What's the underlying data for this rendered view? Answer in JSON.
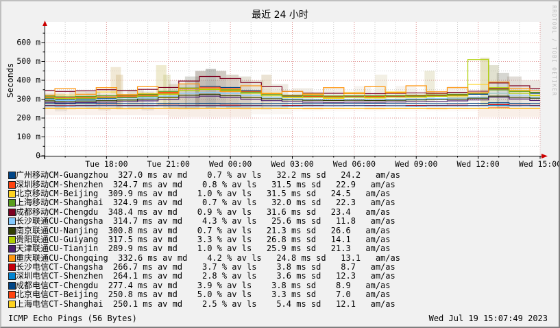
{
  "title": "最近 24 小时",
  "watermark": "RRDTOOL / TOBI OETIKER",
  "footer": {
    "left": "ICMP Echo Pings (56 Bytes)",
    "right": "Wed Jul 19 15:07:49 2023"
  },
  "colors": {
    "background": "#f1f1f1",
    "canvas": "#ffffff",
    "grid_minor": "#cfcfcf",
    "grid_major": "#e09494",
    "axis": "#000000",
    "arrow": "#cc0000",
    "watermark_gray": "#b9b9b9"
  },
  "chart_data": {
    "type": "line",
    "title": "最近 24 小时",
    "ylabel": "Seconds",
    "ylim": [
      0,
      660
    ],
    "y_unit": "m",
    "y_tick_labels": [
      "0",
      "100 m",
      "200 m",
      "300 m",
      "400 m",
      "500 m",
      "600 m"
    ],
    "y_minor_step": 50,
    "y_major_step": 100,
    "x_hours": 24,
    "x_minor_step_hours": 1,
    "x_tick_labels": [
      {
        "hour": 3,
        "label": "Tue 18:00"
      },
      {
        "hour": 6,
        "label": "Tue 21:00"
      },
      {
        "hour": 9,
        "label": "Wed 00:00"
      },
      {
        "hour": 12,
        "label": "Wed 03:00"
      },
      {
        "hour": 15,
        "label": "Wed 06:00"
      },
      {
        "hour": 18,
        "label": "Wed 09:00"
      },
      {
        "hour": 21,
        "label": "Wed 12:00"
      },
      {
        "hour": 24,
        "label": "Wed 15:00"
      }
    ],
    "series": [
      {
        "name": "CM-Guangzhou",
        "color": "#004586",
        "values": [
          302,
          298,
          301,
          305,
          308,
          314,
          330,
          358,
          368,
          362,
          345,
          328,
          316,
          312,
          310,
          312,
          311,
          313,
          315,
          318,
          321,
          326,
          358,
          344,
          331
        ]
      },
      {
        "name": "CM-Shenzhen",
        "color": "#ff420e",
        "values": [
          310,
          307,
          309,
          312,
          316,
          321,
          336,
          354,
          363,
          356,
          341,
          326,
          318,
          315,
          314,
          316,
          315,
          316,
          318,
          320,
          323,
          331,
          354,
          346,
          336
        ]
      },
      {
        "name": "CM-Beijing",
        "color": "#ffd320",
        "values": [
          294,
          322,
          296,
          338,
          298,
          330,
          308,
          356,
          336,
          352,
          310,
          332,
          308,
          328,
          304,
          334,
          306,
          338,
          310,
          330,
          312,
          378,
          330,
          346,
          318
        ]
      },
      {
        "name": "CM-Shanghai",
        "color": "#579d1c",
        "values": [
          316,
          313,
          315,
          318,
          321,
          326,
          341,
          359,
          354,
          349,
          337,
          326,
          321,
          318,
          317,
          318,
          318,
          319,
          321,
          323,
          326,
          331,
          349,
          341,
          336
        ]
      },
      {
        "name": "CM-Chengdu",
        "color": "#7e0021",
        "values": [
          346,
          341,
          344,
          350,
          346,
          352,
          362,
          396,
          420,
          409,
          388,
          366,
          341,
          332,
          331,
          330,
          329,
          331,
          333,
          331,
          336,
          342,
          386,
          371,
          356
        ]
      },
      {
        "name": "CU-Changsha",
        "color": "#83caff",
        "values": [
          296,
          293,
          295,
          298,
          301,
          306,
          316,
          331,
          336,
          330,
          319,
          309,
          301,
          298,
          297,
          298,
          298,
          299,
          301,
          303,
          306,
          311,
          331,
          321,
          311
        ]
      },
      {
        "name": "CU-Nanjing",
        "color": "#314004",
        "values": [
          291,
          288,
          290,
          292,
          295,
          300,
          310,
          321,
          326,
          318,
          309,
          302,
          296,
          294,
          293,
          294,
          293,
          294,
          296,
          298,
          300,
          305,
          316,
          310,
          305
        ]
      },
      {
        "name": "CU-Guiyang",
        "color": "#aecf00",
        "values": [
          306,
          303,
          305,
          308,
          311,
          316,
          326,
          346,
          351,
          344,
          331,
          318,
          312,
          310,
          309,
          310,
          310,
          311,
          313,
          315,
          318,
          510,
          361,
          331,
          321
        ]
      },
      {
        "name": "CU-Tianjin",
        "color": "#4b1f6f",
        "values": [
          283,
          280,
          282,
          284,
          287,
          291,
          299,
          311,
          316,
          309,
          300,
          292,
          287,
          284,
          283,
          284,
          284,
          285,
          287,
          288,
          291,
          296,
          311,
          301,
          293
        ]
      },
      {
        "name": "CU-Chongqing",
        "color": "#ff950e",
        "values": [
          321,
          356,
          326,
          361,
          324,
          366,
          331,
          381,
          356,
          341,
          371,
          329,
          341,
          324,
          361,
          329,
          366,
          334,
          371,
          339,
          361,
          334,
          391,
          356,
          344
        ]
      },
      {
        "name": "CT-Changsha",
        "color": "#c5000b",
        "values": [
          267,
          266,
          267,
          268,
          267,
          267,
          268,
          267,
          267,
          268,
          267,
          266,
          267,
          267,
          266,
          267,
          267,
          266,
          267,
          267,
          268,
          267,
          271,
          268,
          267
        ]
      },
      {
        "name": "CT-Shenzhen",
        "color": "#0084d1",
        "values": [
          264,
          263,
          264,
          265,
          264,
          264,
          265,
          264,
          264,
          263,
          264,
          264,
          263,
          264,
          264,
          265,
          264,
          264,
          263,
          264,
          264,
          265,
          267,
          265,
          264
        ]
      },
      {
        "name": "CT-Chengdu",
        "color": "#004586",
        "values": [
          277,
          276,
          277,
          278,
          277,
          277,
          278,
          277,
          278,
          277,
          276,
          277,
          277,
          276,
          277,
          277,
          278,
          277,
          277,
          276,
          277,
          278,
          281,
          278,
          277
        ]
      },
      {
        "name": "CT-Beijing",
        "color": "#ff420e",
        "values": [
          251,
          250,
          251,
          251,
          250,
          251,
          251,
          250,
          251,
          251,
          250,
          251,
          250,
          251,
          251,
          250,
          251,
          251,
          250,
          251,
          251,
          250,
          254,
          251,
          251
        ]
      },
      {
        "name": "CT-Shanghai",
        "color": "#ffd320",
        "values": [
          250,
          249,
          250,
          250,
          249,
          250,
          250,
          249,
          250,
          250,
          249,
          250,
          250,
          249,
          250,
          250,
          249,
          250,
          250,
          249,
          250,
          250,
          252,
          250,
          250
        ]
      }
    ],
    "smoke_bands": [
      [
        0,
        1,
        250,
        330,
        "#b59a6a",
        0.25
      ],
      [
        0.5,
        0.6,
        235,
        310,
        "#999999",
        0.18
      ],
      [
        1.2,
        0.8,
        255,
        345,
        "#b59a6a",
        0.2
      ],
      [
        2,
        0.7,
        250,
        340,
        "#8a8a6a",
        0.22
      ],
      [
        2.6,
        0.6,
        240,
        330,
        "#b59a6a",
        0.2
      ],
      [
        3.2,
        0.5,
        250,
        470,
        "#d8c08a",
        0.35
      ],
      [
        3.45,
        0.35,
        250,
        430,
        "#c8a868",
        0.3
      ],
      [
        4,
        0.8,
        250,
        350,
        "#b59a6a",
        0.25
      ],
      [
        4.7,
        0.6,
        240,
        340,
        "#999999",
        0.2
      ],
      [
        5.4,
        0.5,
        260,
        480,
        "#d8cc8a",
        0.4
      ],
      [
        5.75,
        0.35,
        255,
        430,
        "#b8b868",
        0.3
      ],
      [
        6,
        0.9,
        250,
        380,
        "#b09a6a",
        0.3
      ],
      [
        6.8,
        0.7,
        250,
        420,
        "#8a8a7a",
        0.32
      ],
      [
        7.3,
        0.5,
        260,
        450,
        "#7a6a5a",
        0.4
      ],
      [
        7.8,
        0.5,
        255,
        460,
        "#6f6f66",
        0.45
      ],
      [
        8.3,
        0.5,
        260,
        450,
        "#8a7a6a",
        0.4
      ],
      [
        8.8,
        0.6,
        255,
        430,
        "#9a8a6a",
        0.35
      ],
      [
        9.4,
        0.6,
        250,
        420,
        "#a89a7a",
        0.3
      ],
      [
        10,
        0.6,
        250,
        400,
        "#b0a080",
        0.28
      ],
      [
        10.5,
        0.5,
        245,
        430,
        "#c0a878",
        0.32
      ],
      [
        11,
        0.8,
        250,
        380,
        "#b0a080",
        0.22
      ],
      [
        12,
        1,
        260,
        360,
        "#c0b090",
        0.18
      ],
      [
        13.5,
        1,
        270,
        360,
        "#c8b898",
        0.15
      ],
      [
        15,
        0.8,
        275,
        370,
        "#c8b898",
        0.15
      ],
      [
        16,
        0.6,
        280,
        430,
        "#d0c498",
        0.25
      ],
      [
        17,
        1,
        280,
        370,
        "#c8b898",
        0.15
      ],
      [
        18.4,
        0.5,
        285,
        450,
        "#c8c088",
        0.3
      ],
      [
        19.5,
        1,
        285,
        370,
        "#c8b898",
        0.15
      ],
      [
        21.1,
        0.45,
        265,
        520,
        "#c8c078",
        0.45
      ],
      [
        21.5,
        0.5,
        260,
        480,
        "#a8a878",
        0.35
      ],
      [
        21.9,
        0.6,
        255,
        440,
        "#8a8a7a",
        0.35
      ],
      [
        22.4,
        0.7,
        260,
        420,
        "#9a8a7a",
        0.3
      ],
      [
        23.1,
        0.9,
        265,
        400,
        "#b0a088",
        0.25
      ],
      [
        0,
        6,
        215,
        265,
        "#e8c0a8",
        0.22
      ],
      [
        6,
        4,
        205,
        260,
        "#e0b8a0",
        0.26
      ],
      [
        10,
        2,
        220,
        265,
        "#e8d0c0",
        0.2
      ],
      [
        12,
        9,
        235,
        265,
        "#f0dcd0",
        0.16
      ],
      [
        21,
        3,
        205,
        260,
        "#e8c0a8",
        0.26
      ],
      [
        0,
        10,
        265,
        345,
        "#b8a888",
        0.12
      ],
      [
        10,
        11,
        275,
        345,
        "#c0b098",
        0.1
      ],
      [
        6,
        4,
        250,
        400,
        "#a89888",
        0.14
      ]
    ]
  },
  "legend": {
    "columns": {
      "med": " ms av md",
      "loss": " % av ls",
      "sd": " ms sd",
      "tail": "   am/as"
    },
    "rows": [
      {
        "cn": "广州移动",
        "en": "CM-Guangzhou",
        "color": "#004586",
        "med": "327.0",
        "loss": "0.7",
        "sd": "32.2",
        "amas": "24.2"
      },
      {
        "cn": "深圳移动",
        "en": "CM-Shenzhen",
        "color": "#ff420e",
        "med": "324.7",
        "loss": "0.8",
        "sd": "31.5",
        "amas": "22.9"
      },
      {
        "cn": "北京移动",
        "en": "CM-Beijing",
        "color": "#ffd320",
        "med": "309.9",
        "loss": "1.0",
        "sd": "31.5",
        "amas": "24.5"
      },
      {
        "cn": "上海移动",
        "en": "CM-Shanghai",
        "color": "#579d1c",
        "med": "324.9",
        "loss": "0.7",
        "sd": "32.0",
        "amas": "22.3"
      },
      {
        "cn": "成都移动",
        "en": "CM-Chengdu",
        "color": "#7e0021",
        "med": "348.4",
        "loss": "0.9",
        "sd": "31.6",
        "amas": "23.4"
      },
      {
        "cn": "长沙联通",
        "en": "CU-Changsha",
        "color": "#83caff",
        "med": "314.7",
        "loss": "4.3",
        "sd": "25.6",
        "amas": "11.8"
      },
      {
        "cn": "南京联通",
        "en": "CU-Nanjing",
        "color": "#314004",
        "med": "300.8",
        "loss": "0.7",
        "sd": "21.3",
        "amas": "26.6"
      },
      {
        "cn": "贵阳联通",
        "en": "CU-Guiyang",
        "color": "#aecf00",
        "med": "317.5",
        "loss": "3.3",
        "sd": "26.8",
        "amas": "14.1"
      },
      {
        "cn": "天津联通",
        "en": "CU-Tianjin",
        "color": "#4b1f6f",
        "med": "289.9",
        "loss": "1.0",
        "sd": "25.9",
        "amas": "21.3"
      },
      {
        "cn": "重庆联通",
        "en": "CU-Chongqing",
        "color": "#ff950e",
        "med": "332.6",
        "loss": "4.2",
        "sd": "24.8",
        "amas": "13.1"
      },
      {
        "cn": "长沙电信",
        "en": "CT-Changsha",
        "color": "#c5000b",
        "med": "266.7",
        "loss": "3.7",
        "sd": "3.8",
        "amas": "8.7"
      },
      {
        "cn": "深圳电信",
        "en": "CT-Shenzhen",
        "color": "#0084d1",
        "med": "264.1",
        "loss": "2.8",
        "sd": "3.6",
        "amas": "12.3"
      },
      {
        "cn": "成都电信",
        "en": "CT-Chengdu",
        "color": "#004586",
        "med": "277.4",
        "loss": "3.9",
        "sd": "3.8",
        "amas": "8.9"
      },
      {
        "cn": "北京电信",
        "en": "CT-Beijing",
        "color": "#ff420e",
        "med": "250.8",
        "loss": "5.0",
        "sd": "3.3",
        "amas": "7.0"
      },
      {
        "cn": "上海电信",
        "en": "CT-Shanghai",
        "color": "#ffd320",
        "med": "250.1",
        "loss": "2.5",
        "sd": "5.4",
        "amas": "12.1"
      }
    ]
  }
}
